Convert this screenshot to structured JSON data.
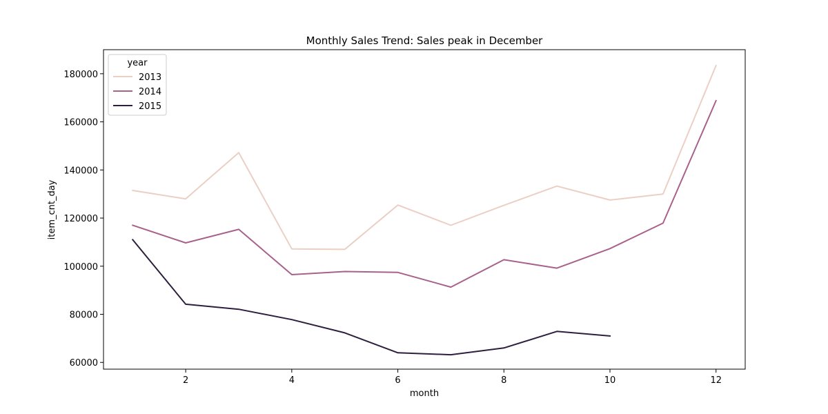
{
  "chart_data": {
    "type": "line",
    "title": "Monthly Sales Trend: Sales peak in December",
    "xlabel": "month",
    "ylabel": "item_cnt_day",
    "xlim": [
      0.45,
      12.55
    ],
    "ylim": [
      57200,
      190000
    ],
    "xticks": [
      2,
      4,
      6,
      8,
      10,
      12
    ],
    "yticks": [
      60000,
      80000,
      100000,
      120000,
      140000,
      160000,
      180000
    ],
    "grid": false,
    "legend": {
      "title": "year",
      "placement": "top-left"
    },
    "series": [
      {
        "name": "2013",
        "color": "#ebcfc4",
        "x": [
          1,
          2,
          3,
          4,
          5,
          6,
          7,
          8,
          9,
          10,
          11,
          12
        ],
        "y": [
          131500,
          128000,
          147200,
          107200,
          107000,
          125400,
          117000,
          125300,
          133300,
          127500,
          130000,
          183400
        ]
      },
      {
        "name": "2014",
        "color": "#a8618a",
        "x": [
          1,
          2,
          3,
          4,
          5,
          6,
          7,
          8,
          9,
          10,
          11,
          12
        ],
        "y": [
          117000,
          109700,
          115300,
          96500,
          97800,
          97400,
          91300,
          102700,
          99200,
          107300,
          117900,
          168800
        ]
      },
      {
        "name": "2015",
        "color": "#2d1e3e",
        "x": [
          1,
          2,
          3,
          4,
          5,
          6,
          7,
          8,
          9,
          10
        ],
        "y": [
          111000,
          84200,
          82100,
          77800,
          72300,
          64000,
          63200,
          66000,
          72900,
          71000
        ]
      }
    ]
  }
}
